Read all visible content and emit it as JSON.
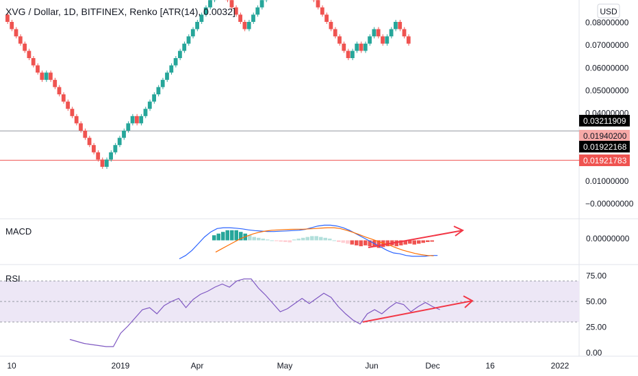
{
  "title": "XVG / Dollar, 1D, BITFINEX, Renko [ATR(14), 0.0032]",
  "currency_button": "USD",
  "price_axis": {
    "ticks": [
      "0.08000000",
      "0.07000000",
      "0.06000000",
      "0.05000000",
      "0.04000000",
      "0.01000000",
      "−0.00000000"
    ]
  },
  "price_badges": [
    {
      "text": "0.03211909",
      "value": 0.03211909,
      "bg": "#000000",
      "fg": "#ffffff"
    },
    {
      "text": "0.01940200",
      "value": 0.019402,
      "bg": "#f7a9a7",
      "fg": "#131722"
    },
    {
      "text": "0.01922168",
      "value": 0.01922168,
      "bg": "#000000",
      "fg": "#ffffff"
    },
    {
      "text": "0.01921783",
      "value": 0.01921783,
      "bg": "#ef5350",
      "fg": "#ffffff"
    }
  ],
  "reference_lines": {
    "upper": 0.03211909,
    "lower": 0.01921783
  },
  "macd_pane": {
    "label": "MACD",
    "axis_value": "0.00000000"
  },
  "rsi_pane": {
    "label": "RSI",
    "ticks": [
      "75.00",
      "50.00",
      "25.00",
      "0.00"
    ]
  },
  "time_axis": {
    "labels": [
      "10",
      "2019",
      "Apr",
      "May",
      "Jun",
      "Dec",
      "16",
      "2022"
    ]
  },
  "colors": {
    "up": "#26a69a",
    "down": "#ef5350",
    "macd_line": "#2962ff",
    "signal_line": "#ff6d00",
    "rsi_line": "#7e57c2",
    "rsi_band": "#ede7f6",
    "annotation": "#f23645"
  },
  "chart_data": {
    "type": "renko",
    "box_size": 0.0032,
    "price_range": [
      -0.004,
      0.084
    ],
    "bricks": [
      "down",
      "down",
      "down",
      "down",
      "down",
      "down",
      "down",
      "down",
      "down",
      "up",
      "down",
      "down",
      "down",
      "down",
      "down",
      "down",
      "down",
      "down",
      "down",
      "down",
      "down",
      "down",
      "down",
      "up",
      "up",
      "up",
      "up",
      "up",
      "up",
      "up",
      "down",
      "up",
      "up",
      "up",
      "up",
      "up",
      "up",
      "up",
      "up",
      "up",
      "up",
      "up",
      "up",
      "up",
      "up",
      "up",
      "up",
      "up",
      "up",
      "up",
      "down",
      "down",
      "down",
      "down",
      "down",
      "down",
      "up",
      "up",
      "up",
      "up",
      "up",
      "up",
      "up",
      "up",
      "up",
      "up",
      "down",
      "down",
      "down",
      "down",
      "down",
      "down",
      "down",
      "down",
      "down",
      "down",
      "down",
      "down",
      "down",
      "down",
      "up",
      "up",
      "down",
      "up",
      "up",
      "up",
      "down",
      "down",
      "up",
      "up",
      "up",
      "down",
      "down",
      "down"
    ],
    "macd": {
      "zero_value": 0,
      "range": [
        -0.014,
        0.012
      ],
      "histogram": [
        0.003,
        0.004,
        0.005,
        0.006,
        0.006,
        0.006,
        0.005,
        0.004,
        0.003,
        0.002,
        0.0015,
        0.001,
        0.0005,
        0,
        -0.0005,
        -0.0008,
        -0.001,
        -0.0012,
        0.0005,
        0.001,
        0.0015,
        0.002,
        0.0025,
        0.0025,
        0.002,
        0.0015,
        0.001,
        0,
        -0.001,
        -0.0015,
        -0.002,
        -0.0025,
        -0.003,
        -0.0035,
        -0.003,
        -0.0035,
        -0.004,
        -0.0045,
        -0.004,
        -0.0035,
        -0.003,
        -0.0035,
        -0.003,
        -0.0025,
        -0.002,
        -0.0025,
        -0.002,
        -0.0015,
        -0.001,
        -0.0008
      ],
      "macd_line": [
        -0.011,
        -0.009,
        -0.006,
        -0.002,
        0.002,
        0.005,
        0.007,
        0.0075,
        0.0075,
        0.0072,
        0.0068,
        0.0062,
        0.0058,
        0.0055,
        0.0052,
        0.0052,
        0.0054,
        0.0056,
        0.0058,
        0.006,
        0.0065,
        0.0075,
        0.0085,
        0.009,
        0.009,
        0.0085,
        0.0075,
        0.006,
        0.004,
        0.002,
        0,
        -0.002,
        -0.004,
        -0.006,
        -0.0075,
        -0.008,
        -0.009,
        -0.0095,
        -0.0095,
        -0.0095,
        -0.009,
        -0.009
      ],
      "signal_line": [
        -0.007,
        -0.005,
        -0.003,
        -0.001,
        0.001,
        0.0025,
        0.0038,
        0.0048,
        0.0055,
        0.006,
        0.0062,
        0.0064,
        0.0065,
        0.0066,
        0.0066,
        0.0068,
        0.007,
        0.0073,
        0.0075,
        0.0075,
        0.007,
        0.006,
        0.0048,
        0.0035,
        0.002,
        0.0008,
        -0.0005,
        -0.0018,
        -0.003,
        -0.0045,
        -0.0058,
        -0.0068,
        -0.0078,
        -0.0085,
        -0.009,
        -0.0092
      ],
      "annotation": "up-arrow"
    },
    "rsi": {
      "range": [
        0,
        100
      ],
      "levels": [
        70,
        50,
        30
      ],
      "values": [
        13,
        11,
        9,
        8,
        7,
        6,
        6,
        19,
        26,
        34,
        42,
        44,
        38,
        46,
        50,
        53,
        44,
        52,
        57,
        60,
        64,
        67,
        64,
        70,
        72,
        72,
        63,
        56,
        48,
        40,
        43,
        48,
        53,
        48,
        53,
        58,
        54,
        45,
        38,
        32,
        28,
        38,
        42,
        38,
        44,
        49,
        47,
        40,
        45,
        49,
        45,
        42
      ]
    }
  }
}
